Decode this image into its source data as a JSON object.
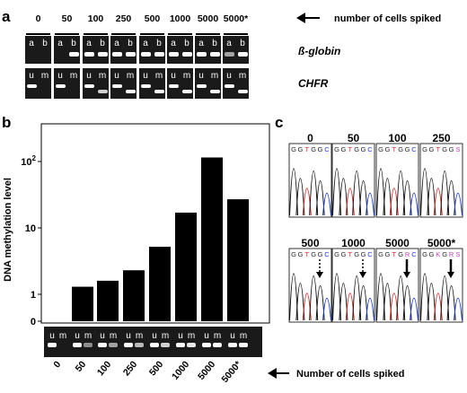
{
  "panel_a": {
    "label": "a",
    "columns": [
      "0",
      "50",
      "100",
      "250",
      "500",
      "1000",
      "5000",
      "5000*"
    ],
    "arrow_text": "number of cells spiked",
    "lane_labels_row1": [
      "a",
      "b"
    ],
    "lane_labels_row2": [
      "u",
      "m"
    ],
    "gene1": "ß-globin",
    "gene2": "CHFR"
  },
  "panel_b": {
    "label": "b",
    "gel_lanes": [
      "u",
      "m"
    ],
    "arrow_text": "Number of cells spiked"
  },
  "panel_c": {
    "label": "c",
    "row1": [
      {
        "label": "0",
        "seq": [
          "G",
          "G",
          "T",
          "G",
          "G",
          "C"
        ]
      },
      {
        "label": "50",
        "seq": [
          "G",
          "G",
          "T",
          "G",
          "G",
          "C"
        ]
      },
      {
        "label": "100",
        "seq": [
          "G",
          "G",
          "T",
          "G",
          "G",
          "C"
        ]
      },
      {
        "label": "250",
        "seq": [
          "G",
          "G",
          "T",
          "G",
          "G",
          "S"
        ]
      }
    ],
    "row2": [
      {
        "label": "500",
        "seq": [
          "G",
          "G",
          "T",
          "G",
          "G",
          "C"
        ]
      },
      {
        "label": "1000",
        "seq": [
          "G",
          "G",
          "T",
          "G",
          "G",
          "C"
        ]
      },
      {
        "label": "5000",
        "seq": [
          "G",
          "G",
          "T",
          "G",
          "R",
          "C"
        ]
      },
      {
        "label": "5000*",
        "seq": [
          "G",
          "G",
          "K",
          "G",
          "R",
          "S"
        ]
      }
    ]
  },
  "chart_data": {
    "type": "bar",
    "categories": [
      "0",
      "50",
      "100",
      "250",
      "500",
      "1000",
      "5000",
      "5000*"
    ],
    "values": [
      0,
      1.3,
      1.6,
      2.3,
      5.2,
      17,
      115,
      27
    ],
    "ylabel": "DNA methylation level",
    "yscale": "log-like (0, 1, 10, 10^2)",
    "yticks": [
      "0",
      "1",
      "10",
      "10²"
    ],
    "bar_color": "#000000"
  }
}
